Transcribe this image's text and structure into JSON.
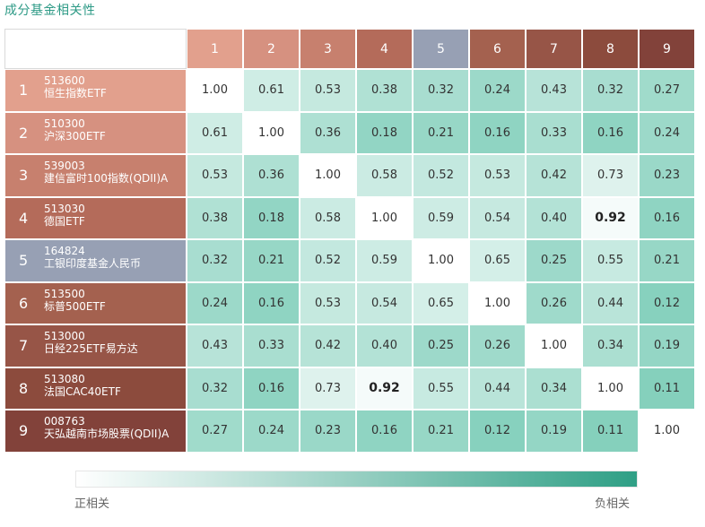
{
  "title": "成分基金相关性",
  "legend": {
    "left": "正相关",
    "right": "负相关",
    "gradient_start": "#ffffff",
    "gradient_end": "#2f9f85"
  },
  "colors": {
    "header": [
      "#e2a08d",
      "#d69180",
      "#c7806e",
      "#b46b5a",
      "#97a0b4",
      "#a4614f",
      "#975547",
      "#8c4b3d",
      "#82423a"
    ],
    "row": [
      "#e2a08d",
      "#d69180",
      "#c7806e",
      "#b46b5a",
      "#97a0b4",
      "#a4614f",
      "#975547",
      "#8c4b3d",
      "#82423a"
    ],
    "cell_high": "#ffffff",
    "cell_low": "#82cfbb"
  },
  "chart_data": {
    "type": "heatmap",
    "columns": [
      "1",
      "2",
      "3",
      "4",
      "5",
      "6",
      "7",
      "8",
      "9"
    ],
    "rows": [
      {
        "index": "1",
        "code": "513600",
        "name": "恒生指数ETF"
      },
      {
        "index": "2",
        "code": "510300",
        "name": "沪深300ETF"
      },
      {
        "index": "3",
        "code": "539003",
        "name": "建信富时100指数(QDII)A"
      },
      {
        "index": "4",
        "code": "513030",
        "name": "德国ETF"
      },
      {
        "index": "5",
        "code": "164824",
        "name": "工银印度基金人民币"
      },
      {
        "index": "6",
        "code": "513500",
        "name": "标普500ETF"
      },
      {
        "index": "7",
        "code": "513000",
        "name": "日经225ETF易方达"
      },
      {
        "index": "8",
        "code": "513080",
        "name": "法国CAC40ETF"
      },
      {
        "index": "9",
        "code": "008763",
        "name": "天弘越南市场股票(QDII)A"
      }
    ],
    "matrix": [
      [
        "1.00",
        "0.61",
        "0.53",
        "0.38",
        "0.32",
        "0.24",
        "0.43",
        "0.32",
        "0.27"
      ],
      [
        "0.61",
        "1.00",
        "0.36",
        "0.18",
        "0.21",
        "0.16",
        "0.33",
        "0.16",
        "0.24"
      ],
      [
        "0.53",
        "0.36",
        "1.00",
        "0.58",
        "0.52",
        "0.53",
        "0.42",
        "0.73",
        "0.23"
      ],
      [
        "0.38",
        "0.18",
        "0.58",
        "1.00",
        "0.59",
        "0.54",
        "0.40",
        "0.92",
        "0.16"
      ],
      [
        "0.32",
        "0.21",
        "0.52",
        "0.59",
        "1.00",
        "0.65",
        "0.25",
        "0.55",
        "0.21"
      ],
      [
        "0.24",
        "0.16",
        "0.53",
        "0.54",
        "0.65",
        "1.00",
        "0.26",
        "0.44",
        "0.12"
      ],
      [
        "0.43",
        "0.33",
        "0.42",
        "0.40",
        "0.25",
        "0.26",
        "1.00",
        "0.34",
        "0.19"
      ],
      [
        "0.32",
        "0.16",
        "0.73",
        "0.92",
        "0.55",
        "0.44",
        "0.34",
        "1.00",
        "0.11"
      ],
      [
        "0.27",
        "0.24",
        "0.23",
        "0.16",
        "0.21",
        "0.12",
        "0.19",
        "0.11",
        "1.00"
      ]
    ],
    "highlighted": [
      "0.92"
    ],
    "value_range": [
      0,
      1
    ]
  }
}
